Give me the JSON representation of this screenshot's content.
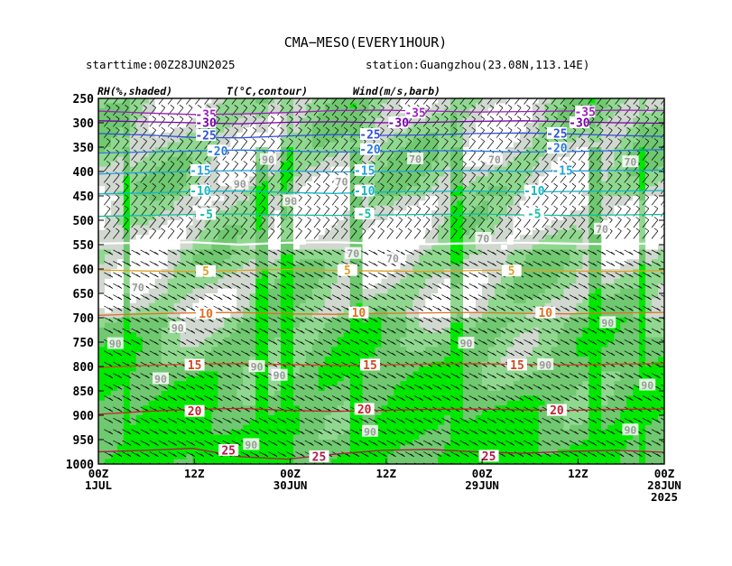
{
  "title": "CMA−MESO(EVERY1HOUR)",
  "subtitle_left": "starttime:00Z28JUN2025",
  "subtitle_right": "station:Guangzhou(23.08N,113.14E)",
  "header_labels": {
    "rh": "RH(%,shaded)",
    "t": "T(°C,contour)",
    "wind": "Wind(m/s,barb)"
  },
  "chart_data": {
    "type": "heatmap",
    "title": "CMA−MESO(EVERY1HOUR)",
    "description_fields": [
      "RH(%,shaded)",
      "T(°C,contour)",
      "Wind(m/s,barb)"
    ],
    "y_axis": {
      "reversed": true,
      "range": [
        1000,
        250
      ],
      "ticks": [
        "250",
        "300",
        "350",
        "400",
        "450",
        "500",
        "550",
        "600",
        "650",
        "700",
        "750",
        "800",
        "850",
        "900",
        "950",
        "1000"
      ]
    },
    "x_axis": {
      "ticks": [
        {
          "pos": 0,
          "label1": "00Z",
          "label2": "1JUL",
          "label3": ""
        },
        {
          "pos": 0.1695,
          "label1": "12Z",
          "label2": "",
          "label3": ""
        },
        {
          "pos": 0.339,
          "label1": "00Z",
          "label2": "30JUN",
          "label3": ""
        },
        {
          "pos": 0.5085,
          "label1": "12Z",
          "label2": "",
          "label3": ""
        },
        {
          "pos": 0.678,
          "label1": "00Z",
          "label2": "29JUN",
          "label3": ""
        },
        {
          "pos": 0.8475,
          "label1": "12Z",
          "label2": "",
          "label3": ""
        },
        {
          "pos": 1.0,
          "label1": "00Z",
          "label2": "28JUN",
          "label3": "2025"
        }
      ]
    },
    "temperature_contours": [
      {
        "value": -35,
        "color": "#a020c0",
        "pressures": [
          276,
          280,
          283,
          282,
          279,
          275,
          274,
          276,
          278,
          277,
          276,
          274,
          275
        ]
      },
      {
        "value": -30,
        "color": "#7a00a8",
        "pressures": [
          296,
          298,
          300,
          302,
          299,
          298,
          300,
          299,
          297,
          296,
          298,
          300,
          301
        ]
      },
      {
        "value": -25,
        "color": "#3050d8",
        "pressures": [
          322,
          325,
          330,
          331,
          327,
          324,
          326,
          325,
          322,
          321,
          323,
          326,
          328
        ]
      },
      {
        "value": -20,
        "color": "#2878e0",
        "pressures": [
          362,
          360,
          358,
          356,
          358,
          360,
          359,
          357,
          358,
          360,
          359,
          357,
          355
        ]
      },
      {
        "value": -15,
        "color": "#20a0e0",
        "pressures": [
          405,
          402,
          400,
          398,
          399,
          401,
          400,
          399,
          398,
          400,
          399,
          398,
          397
        ]
      },
      {
        "value": -10,
        "color": "#10b8c8",
        "pressures": [
          446,
          444,
          441,
          440,
          443,
          445,
          442,
          441,
          440,
          442,
          441,
          440,
          439
        ]
      },
      {
        "value": -5,
        "color": "#10c0a0",
        "pressures": [
          492,
          490,
          488,
          487,
          489,
          490,
          489,
          488,
          487,
          489,
          490,
          489,
          488
        ]
      },
      {
        "value": 0,
        "color": "#ffffff",
        "pressures": [
          548,
          546,
          545,
          550,
          546,
          545,
          548,
          549,
          547,
          546,
          548,
          549,
          547
        ]
      },
      {
        "value": 5,
        "color": "#e0a020",
        "pressures": [
          602,
          604,
          605,
          603,
          601,
          603,
          604,
          605,
          603,
          602,
          604,
          605,
          603
        ]
      },
      {
        "value": 10,
        "color": "#e07020",
        "pressures": [
          695,
          692,
          690,
          689,
          692,
          693,
          691,
          690,
          689,
          691,
          692,
          690,
          689
        ]
      },
      {
        "value": 15,
        "color": "#d04820",
        "pressures": [
          802,
          798,
          795,
          794,
          796,
          798,
          797,
          795,
          794,
          796,
          797,
          795,
          794
        ]
      },
      {
        "value": 20,
        "color": "#c82030",
        "pressures": [
          898,
          892,
          888,
          886,
          890,
          892,
          890,
          888,
          887,
          889,
          890,
          888,
          887
        ]
      },
      {
        "value": 25,
        "color": "#b01848",
        "pressures": [
          975,
          972,
          968,
          985,
          990,
          980,
          972,
          970,
          975,
          978,
          974,
          972,
          976
        ]
      }
    ],
    "contour_labels": [
      {
        "t": 0.19,
        "p": 283,
        "text": "-35",
        "color": "#a020c0"
      },
      {
        "t": 0.56,
        "p": 280,
        "text": "-35",
        "color": "#a020c0"
      },
      {
        "t": 0.86,
        "p": 278,
        "text": "-35",
        "color": "#a020c0"
      },
      {
        "t": 0.19,
        "p": 300,
        "text": "-30",
        "color": "#7a00a8"
      },
      {
        "t": 0.53,
        "p": 300,
        "text": "-30",
        "color": "#7a00a8"
      },
      {
        "t": 0.85,
        "p": 300,
        "text": "-30",
        "color": "#7a00a8"
      },
      {
        "t": 0.19,
        "p": 326,
        "text": "-25",
        "color": "#3050d8"
      },
      {
        "t": 0.48,
        "p": 324,
        "text": "-25",
        "color": "#3050d8"
      },
      {
        "t": 0.81,
        "p": 322,
        "text": "-25",
        "color": "#3050d8"
      },
      {
        "t": 0.21,
        "p": 358,
        "text": "-20",
        "color": "#2878e0"
      },
      {
        "t": 0.48,
        "p": 355,
        "text": "-20",
        "color": "#2878e0"
      },
      {
        "t": 0.81,
        "p": 352,
        "text": "-20",
        "color": "#2878e0"
      },
      {
        "t": 0.18,
        "p": 398,
        "text": "-15",
        "color": "#20a0e0"
      },
      {
        "t": 0.47,
        "p": 398,
        "text": "-15",
        "color": "#20a0e0"
      },
      {
        "t": 0.82,
        "p": 398,
        "text": "-15",
        "color": "#20a0e0"
      },
      {
        "t": 0.18,
        "p": 440,
        "text": "-10",
        "color": "#10b8c8"
      },
      {
        "t": 0.47,
        "p": 440,
        "text": "-10",
        "color": "#10b8c8"
      },
      {
        "t": 0.77,
        "p": 440,
        "text": "-10",
        "color": "#10b8c8"
      },
      {
        "t": 0.19,
        "p": 488,
        "text": "-5",
        "color": "#10c0a0"
      },
      {
        "t": 0.47,
        "p": 487,
        "text": "-5",
        "color": "#10c0a0"
      },
      {
        "t": 0.77,
        "p": 487,
        "text": "-5",
        "color": "#10c0a0"
      },
      {
        "t": 0.19,
        "p": 605,
        "text": "5",
        "color": "#e0a020"
      },
      {
        "t": 0.44,
        "p": 603,
        "text": "5",
        "color": "#e0a020"
      },
      {
        "t": 0.73,
        "p": 604,
        "text": "5",
        "color": "#e0a020"
      },
      {
        "t": 0.19,
        "p": 692,
        "text": "10",
        "color": "#e07020"
      },
      {
        "t": 0.46,
        "p": 690,
        "text": "10",
        "color": "#e07020"
      },
      {
        "t": 0.79,
        "p": 690,
        "text": "10",
        "color": "#e07020"
      },
      {
        "t": 0.17,
        "p": 797,
        "text": "15",
        "color": "#d04820"
      },
      {
        "t": 0.48,
        "p": 797,
        "text": "15",
        "color": "#d04820"
      },
      {
        "t": 0.74,
        "p": 797,
        "text": "15",
        "color": "#d04820"
      },
      {
        "t": 0.17,
        "p": 892,
        "text": "20",
        "color": "#c82030"
      },
      {
        "t": 0.47,
        "p": 888,
        "text": "20",
        "color": "#c82030"
      },
      {
        "t": 0.81,
        "p": 890,
        "text": "20",
        "color": "#c82030"
      },
      {
        "t": 0.23,
        "p": 972,
        "text": "25",
        "color": "#b01848"
      },
      {
        "t": 0.39,
        "p": 985,
        "text": "25",
        "color": "#b01848"
      },
      {
        "t": 0.69,
        "p": 984,
        "text": "25",
        "color": "#b01848"
      }
    ],
    "rh_labels": [
      {
        "t": 0.3,
        "p": 375,
        "text": "90"
      },
      {
        "t": 0.25,
        "p": 425,
        "text": "90"
      },
      {
        "t": 0.34,
        "p": 460,
        "text": "90"
      },
      {
        "t": 0.43,
        "p": 420,
        "text": "70"
      },
      {
        "t": 0.56,
        "p": 374,
        "text": "70"
      },
      {
        "t": 0.7,
        "p": 375,
        "text": "70"
      },
      {
        "t": 0.94,
        "p": 380,
        "text": "70"
      },
      {
        "t": 0.45,
        "p": 568,
        "text": "70"
      },
      {
        "t": 0.52,
        "p": 578,
        "text": "70"
      },
      {
        "t": 0.68,
        "p": 537,
        "text": "70"
      },
      {
        "t": 0.89,
        "p": 518,
        "text": "70"
      },
      {
        "t": 0.07,
        "p": 637,
        "text": "70"
      },
      {
        "t": 0.14,
        "p": 720,
        "text": "90"
      },
      {
        "t": 0.03,
        "p": 753,
        "text": "90"
      },
      {
        "t": 0.11,
        "p": 825,
        "text": "90"
      },
      {
        "t": 0.28,
        "p": 800,
        "text": "90"
      },
      {
        "t": 0.32,
        "p": 818,
        "text": "90"
      },
      {
        "t": 0.65,
        "p": 752,
        "text": "90"
      },
      {
        "t": 0.79,
        "p": 796,
        "text": "90"
      },
      {
        "t": 0.9,
        "p": 710,
        "text": "90"
      },
      {
        "t": 0.97,
        "p": 838,
        "text": "90"
      },
      {
        "t": 0.48,
        "p": 933,
        "text": "90"
      },
      {
        "t": 0.27,
        "p": 960,
        "text": "90"
      },
      {
        "t": 0.94,
        "p": 930,
        "text": "90"
      }
    ]
  },
  "colors": {
    "rh_dry": "#ffffff",
    "rh_70": "#d0d8d0",
    "rh_80": "#90d890",
    "rh_90": "#70c870",
    "rh_95": "#00e800",
    "barb": "#000000"
  }
}
